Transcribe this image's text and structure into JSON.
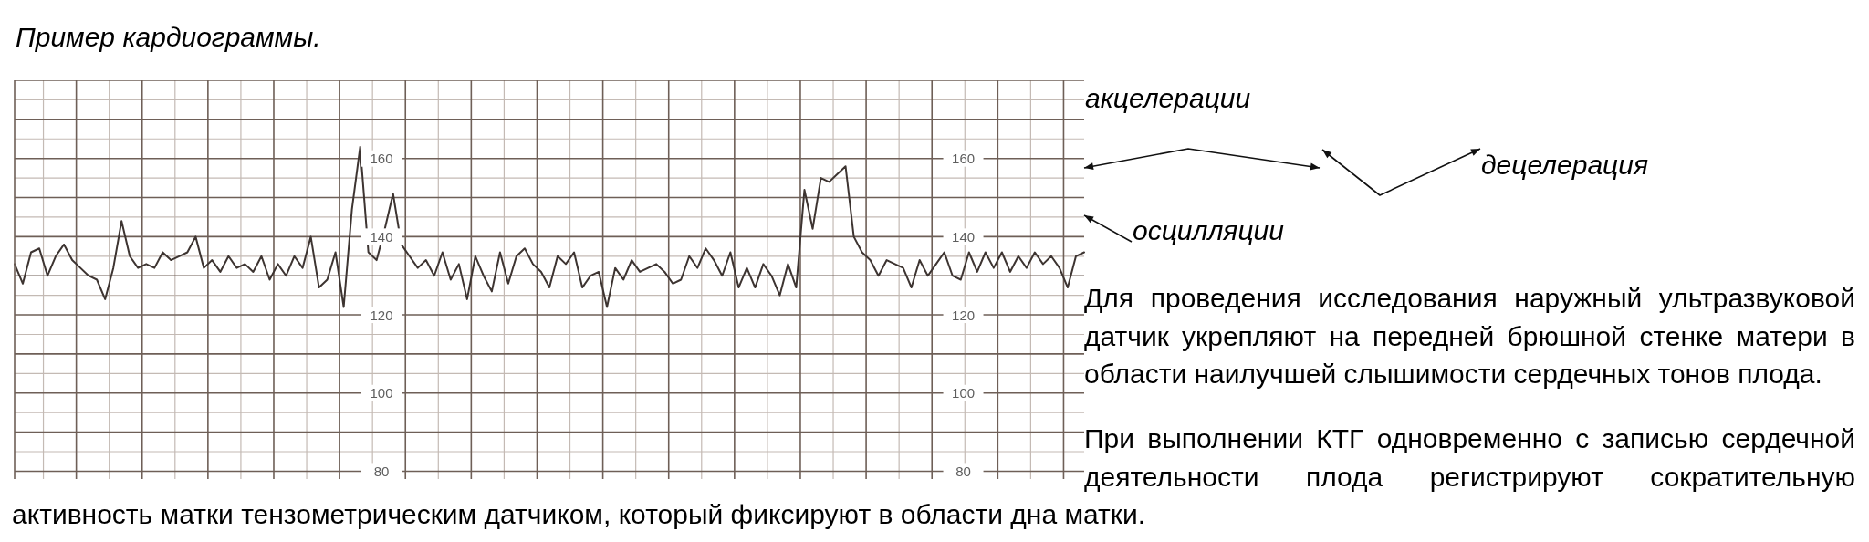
{
  "chart_data": {
    "type": "line",
    "title": "Пример кардиограммы.",
    "annotations": [
      "акцелерации",
      "децелерация",
      "осцилляции",
      "Для проведения исследования наружный ультразвуковой датчик укрепляют на передней брюшной стенке матери в области наилучшей слышимости сердечных тонов плода.",
      "При выполнении КТГ одновременно с записью сердечной деятельности плода регистрируют сократительную",
      "активность матки тензометрическим датчиком, который фиксируют в области дна матки."
    ],
    "categories": [
      null,
      null,
      null,
      null,
      null,
      null,
      null,
      null,
      null,
      null,
      null,
      null,
      null,
      null,
      null,
      null,
      null,
      null,
      null,
      null,
      null,
      null,
      null,
      null,
      null,
      null,
      null,
      null,
      null,
      null,
      null,
      null,
      null,
      null,
      null,
      null,
      null,
      null,
      null,
      null,
      null,
      null,
      null,
      null,
      null,
      null,
      null,
      null,
      null,
      null,
      null,
      null,
      null,
      null,
      null,
      null,
      null,
      null,
      null,
      null,
      null,
      null,
      null,
      null,
      null,
      null,
      null,
      null,
      null,
      null,
      null,
      null,
      null,
      null,
      null,
      null,
      null,
      null,
      null,
      null,
      null,
      null,
      null,
      null,
      null,
      null,
      null,
      null,
      null,
      null,
      null,
      null,
      null,
      null,
      null,
      null,
      null,
      null,
      null,
      null,
      null,
      null,
      null,
      null,
      null,
      null,
      null,
      null,
      null,
      null,
      null,
      null,
      null,
      null,
      null,
      null,
      null,
      null,
      null,
      null,
      null,
      null,
      null,
      null,
      null,
      null,
      null,
      null,
      null,
      null,
      null
    ],
    "values": [
      133,
      128,
      136,
      137,
      130,
      135,
      138,
      134,
      132,
      130,
      129,
      124,
      132,
      144,
      135,
      132,
      133,
      132,
      136,
      134,
      135,
      136,
      140,
      132,
      134,
      131,
      135,
      132,
      133,
      131,
      135,
      129,
      133,
      130,
      135,
      132,
      140,
      127,
      129,
      136,
      122,
      147,
      163,
      136,
      134,
      142,
      151,
      138,
      135,
      132,
      134,
      130,
      136,
      129,
      133,
      124,
      135,
      130,
      126,
      136,
      128,
      135,
      137,
      133,
      131,
      127,
      135,
      133,
      136,
      127,
      130,
      131,
      122,
      132,
      129,
      134,
      131,
      132,
      133,
      131,
      128,
      129,
      135,
      132,
      137,
      134,
      130,
      136,
      127,
      132,
      127,
      133,
      130,
      125,
      133,
      127,
      152,
      142,
      155,
      154,
      156,
      158,
      140,
      136,
      134,
      130,
      134,
      133,
      132,
      127,
      134,
      130,
      133,
      136,
      130,
      129,
      136,
      131,
      136,
      132,
      136,
      131,
      135,
      132,
      136,
      133,
      135,
      132,
      127,
      135,
      136
    ],
    "color": "#3d3431",
    "ylim": [
      78,
      180
    ],
    "yticks": [
      80,
      {
        "value": 90,
        "label": null
      },
      100,
      {
        "value": 110,
        "label": null
      },
      120,
      {
        "value": 130,
        "label": null
      },
      140,
      {
        "value": 150,
        "label": null
      },
      160,
      {
        "value": 170,
        "label": null
      },
      {
        "value": 180,
        "label": null
      }
    ],
    "y2lim": [
      78,
      180
    ],
    "y2ticks": [
      80,
      100,
      120,
      140,
      160
    ],
    "grid": true,
    "tick_labels": "y"
  }
}
